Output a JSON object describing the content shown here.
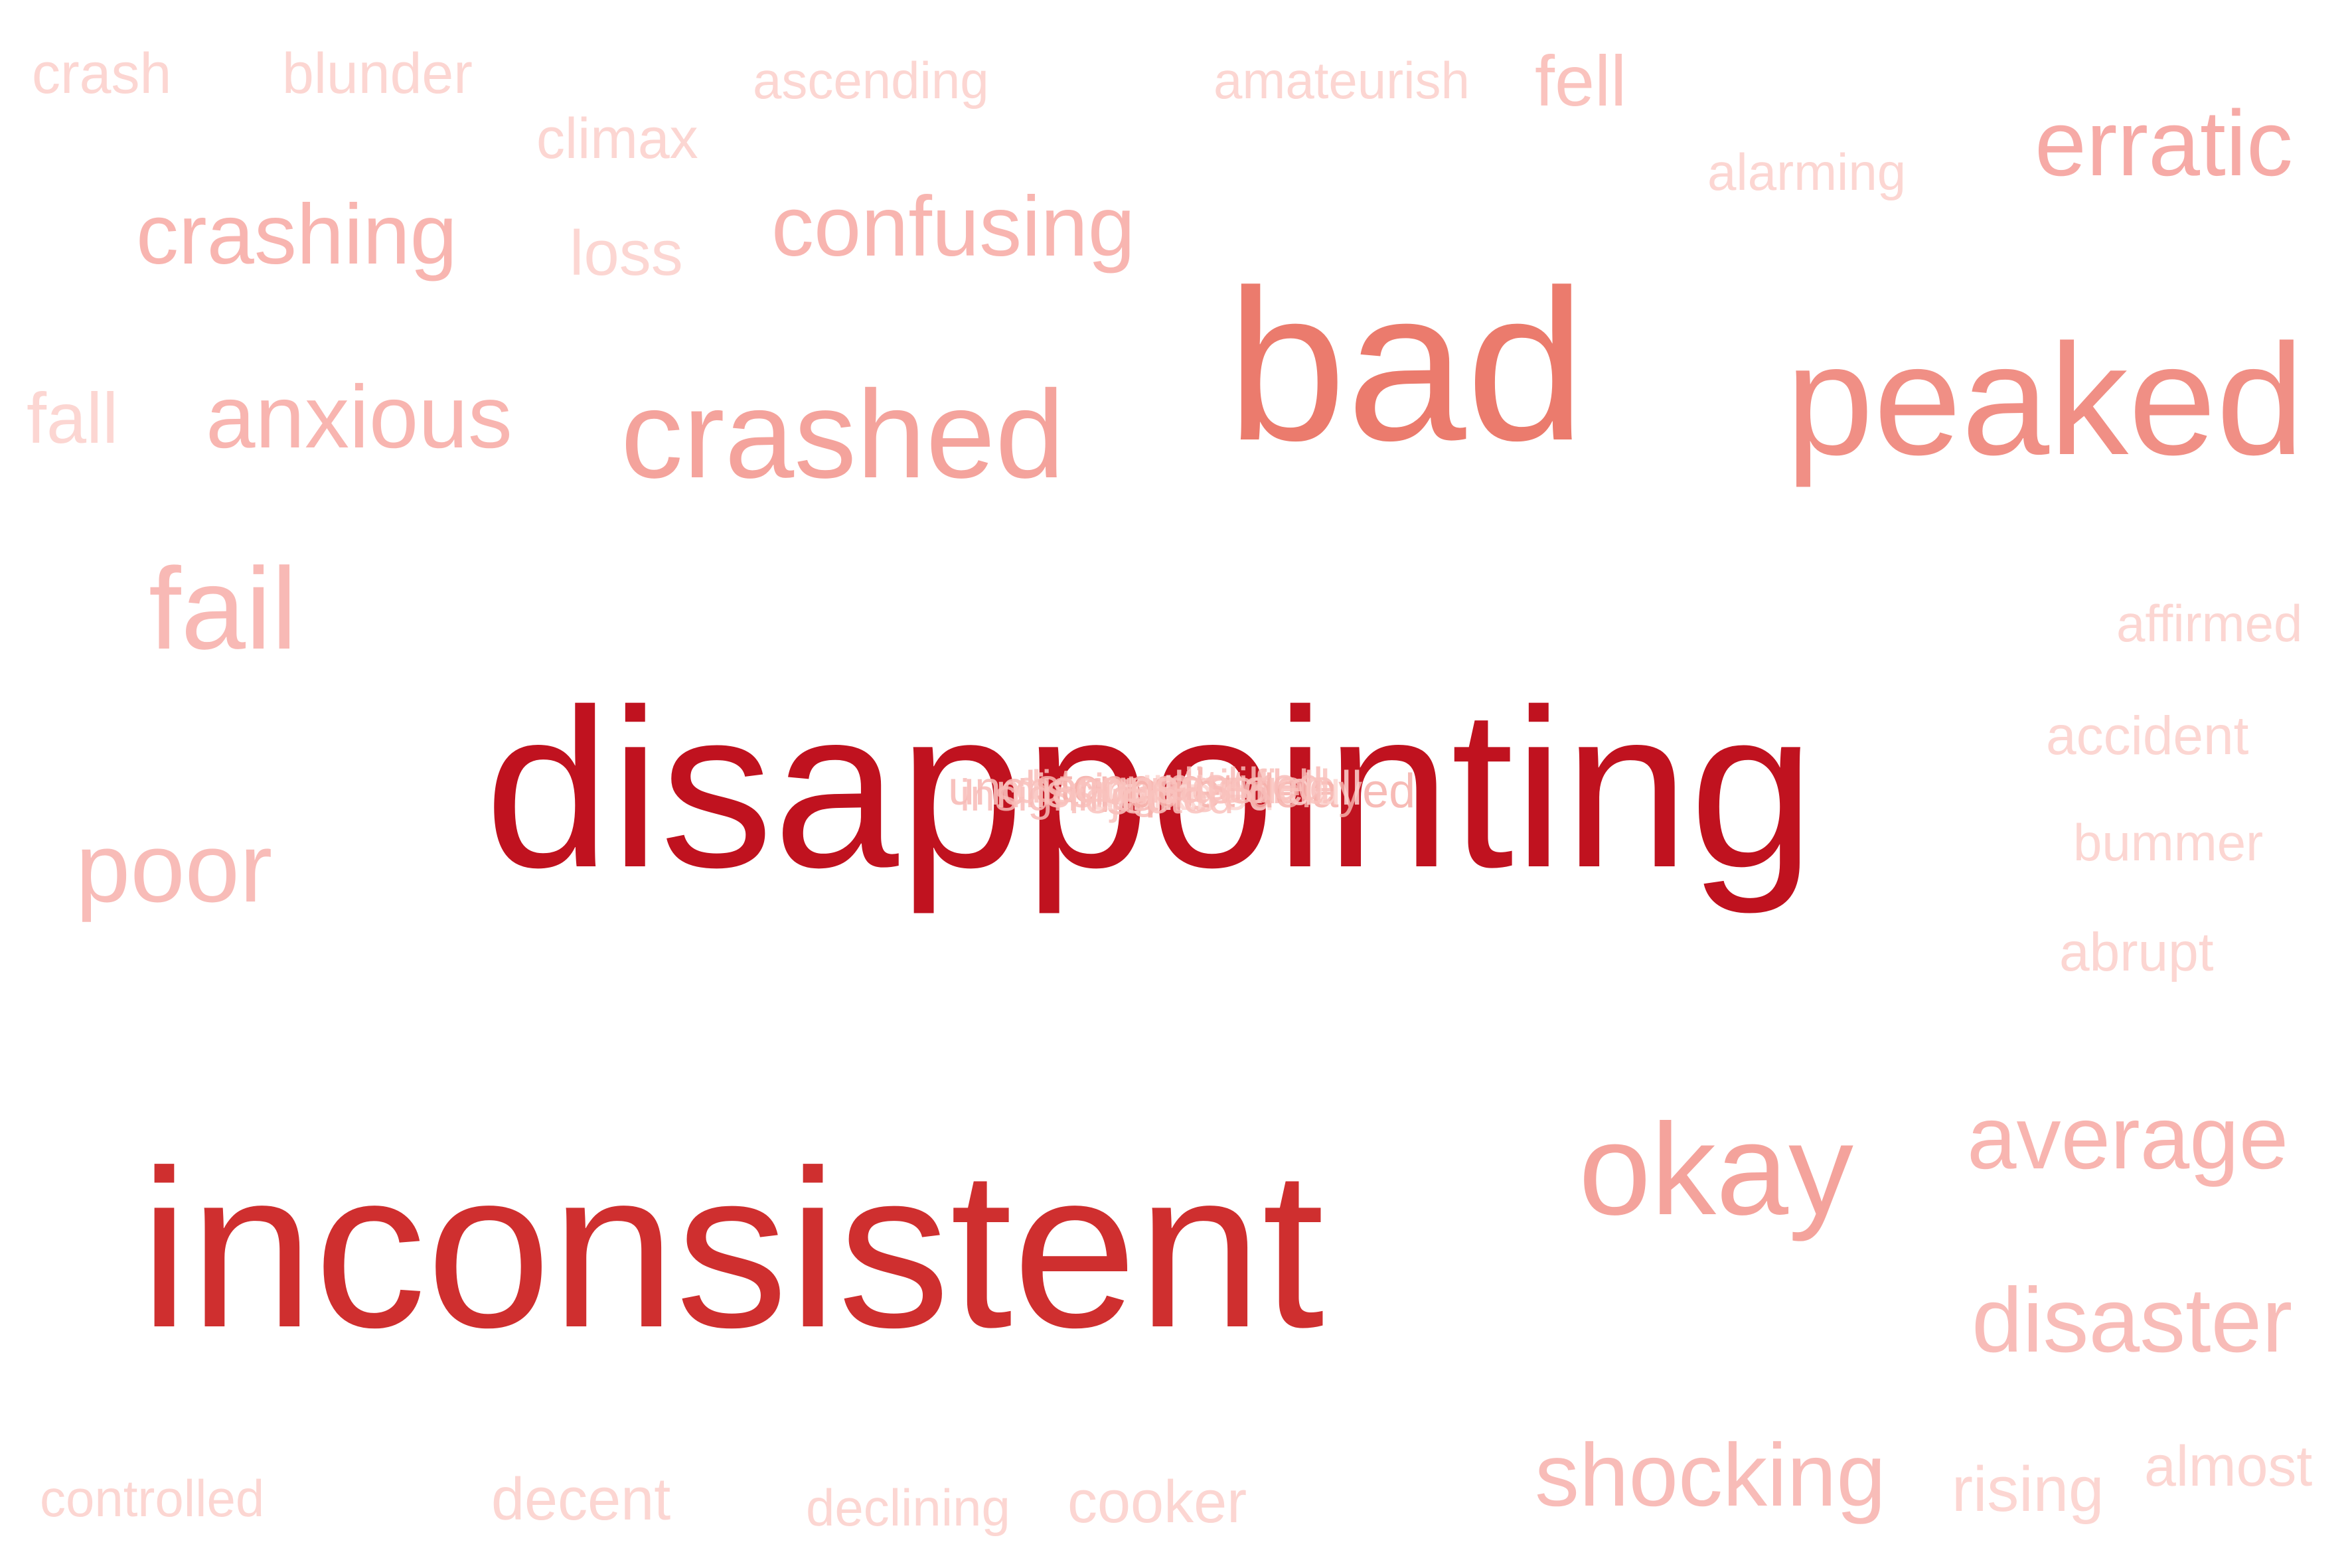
{
  "words": [
    {
      "text": "crash",
      "color": "#fcd6d2"
    },
    {
      "text": "blunder",
      "color": "#fcd6d2"
    },
    {
      "text": "ascending",
      "color": "#fcd6d2"
    },
    {
      "text": "amateurish",
      "color": "#fcd6d2"
    },
    {
      "text": "fell",
      "color": "#fac3be"
    },
    {
      "text": "climax",
      "color": "#fcd6d2"
    },
    {
      "text": "alarming",
      "color": "#fcd6d2"
    },
    {
      "text": "erratic",
      "color": "#f6aaa6"
    },
    {
      "text": "crashing",
      "color": "#f8b5b0"
    },
    {
      "text": "loss",
      "color": "#fcd6d2"
    },
    {
      "text": "confusing",
      "color": "#f8b5b0"
    },
    {
      "text": "bad",
      "color": "#eb7b6d"
    },
    {
      "text": "peaked",
      "color": "#f08f85"
    },
    {
      "text": "fall",
      "color": "#fcd6d2"
    },
    {
      "text": "anxious",
      "color": "#f8b5b0"
    },
    {
      "text": "crashed",
      "color": "#f4a39c"
    },
    {
      "text": "fail",
      "color": "#f8b9b5"
    },
    {
      "text": "affirmed",
      "color": "#fcd6d2"
    },
    {
      "text": "disappointing",
      "color": "#c0121f"
    },
    {
      "text": "accident",
      "color": "#fcd6d2"
    },
    {
      "text": "bummer",
      "color": "#fcd6d2"
    },
    {
      "text": "poor",
      "color": "#f8bcb8"
    },
    {
      "text": "abrupt",
      "color": "#fcd6d2"
    },
    {
      "text": "inconsistent",
      "color": "#cf2f2f"
    },
    {
      "text": "okay",
      "color": "#f4a39c"
    },
    {
      "text": "average",
      "color": "#f8b5b0"
    },
    {
      "text": "disaster",
      "color": "#f8bcb8"
    },
    {
      "text": "controlled",
      "color": "#fcd6d2"
    },
    {
      "text": "decent",
      "color": "#fcd6d2"
    },
    {
      "text": "declining",
      "color": "#fcd6d2"
    },
    {
      "text": "cooker",
      "color": "#fcd6d2"
    },
    {
      "text": "shocking",
      "color": "#f8bcb8"
    },
    {
      "text": "rising",
      "color": "#fcd6d2"
    },
    {
      "text": "almost",
      "color": "#fcd6d2"
    }
  ],
  "overlap_cluster": {
    "words": [
      "unchanged",
      "missing",
      "stopped",
      "unlike",
      "insignificant",
      "discouraged",
      "quiet",
      "tired",
      "stable",
      "rejected",
      "delayed",
      "dull",
      "disliked",
      "unsatisfied"
    ],
    "color": "#f8bcb8"
  }
}
